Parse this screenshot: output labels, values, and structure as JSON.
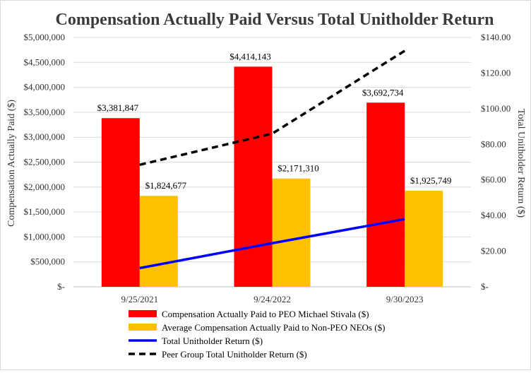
{
  "chart_data": {
    "type": "bar",
    "title": "Compensation Actually Paid Versus Total Unitholder Return",
    "categories": [
      "9/25/2021",
      "9/24/2022",
      "9/30/2023"
    ],
    "ylabel": "Compensation Actually Paid ($)",
    "y2label": "Total Unitholder Return ($)",
    "ylim": [
      0,
      5000000
    ],
    "y2lim": [
      0,
      140
    ],
    "yticks": [
      "$-",
      "$500,000",
      "$1,000,000",
      "$1,500,000",
      "$2,000,000",
      "$2,500,000",
      "$3,000,000",
      "$3,500,000",
      "$4,000,000",
      "$4,500,000",
      "$5,000,000"
    ],
    "y2ticks": [
      "$-",
      "$20.00",
      "$40.00",
      "$60.00",
      "$80.00",
      "$100.00",
      "$120.00",
      "$140.00"
    ],
    "series": [
      {
        "name": "Compensation Actually Paid to PEO Michael Stivala ($)",
        "kind": "bar",
        "axis": "left",
        "color": "#ff0000",
        "values": [
          3381847,
          4414143,
          3692734
        ],
        "labels": [
          "$3,381,847",
          "$4,414,143",
          "$3,692,734"
        ]
      },
      {
        "name": "Average Compensation Actually Paid to Non-PEO NEOs ($)",
        "kind": "bar",
        "axis": "left",
        "color": "#ffc000",
        "values": [
          1824677,
          2171310,
          1925749
        ],
        "labels": [
          "$1,824,677",
          "$2,171,310",
          "$1,925,749"
        ]
      },
      {
        "name": "Total Unitholder Return ($)",
        "kind": "line",
        "axis": "right",
        "color": "#0000ff",
        "dashed": false,
        "values": [
          10.5,
          24.5,
          38.0
        ]
      },
      {
        "name": "Peer Group Total Unitholder Return ($)",
        "kind": "line",
        "axis": "right",
        "color": "#000000",
        "dashed": true,
        "values": [
          68.5,
          86.0,
          132.5
        ]
      }
    ],
    "legend": "bottom"
  }
}
